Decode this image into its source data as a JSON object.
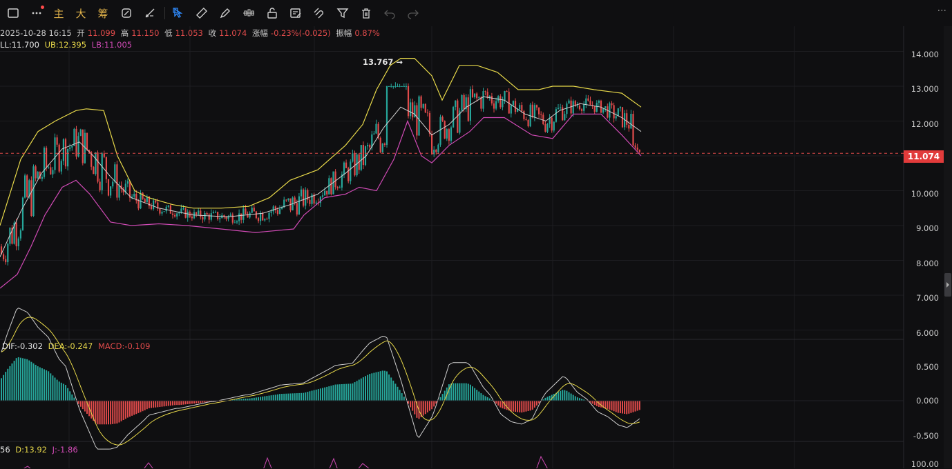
{
  "toolbar": {
    "tools": [
      {
        "name": "layout-icon"
      },
      {
        "name": "more-icon"
      },
      {
        "name": "text-main",
        "label": "主"
      },
      {
        "name": "text-big",
        "label": "大"
      },
      {
        "name": "text-chips",
        "label": "筹"
      },
      {
        "name": "draw-icon"
      },
      {
        "name": "line-tool-icon"
      },
      {
        "name": "select-icon"
      },
      {
        "name": "ruler-icon"
      },
      {
        "name": "pen-icon"
      },
      {
        "name": "candle-icon"
      },
      {
        "name": "lock-icon"
      },
      {
        "name": "note-icon"
      },
      {
        "name": "magnet-icon"
      },
      {
        "name": "filter-icon"
      },
      {
        "name": "trash-icon"
      },
      {
        "name": "undo-icon"
      },
      {
        "name": "redo-icon"
      }
    ],
    "right_more": "···"
  },
  "ohlc": {
    "datetime": "2025-10-28 16:15",
    "open_label": "开",
    "open": "11.099",
    "high_label": "高",
    "high": "11.150",
    "low_label": "低",
    "low": "11.053",
    "close_label": "收",
    "close": "11.074",
    "change_label": "涨幅",
    "change": "-0.23%(-0.025)",
    "amplitude_label": "振幅",
    "amplitude": "0.87%"
  },
  "boll": {
    "mid": "LL:11.700",
    "ub": "UB:12.395",
    "lb": "LB:11.005"
  },
  "macd": {
    "dif": "DIF:-0.302",
    "dea": "DEA:-0.247",
    "macd": "MACD:-0.109"
  },
  "kdj": {
    "k": "56",
    "d": "D:13.92",
    "j": "J:-1.86"
  },
  "high_annotation": "13.767",
  "last_price": "11.074",
  "price_axis": [
    "14.000",
    "13.000",
    "12.000",
    "11.000",
    "10.000",
    "9.000",
    "8.000",
    "7.000",
    "6.000"
  ],
  "macd_axis": [
    "0.500",
    "0.000",
    "-0.500"
  ],
  "kdj_axis": [
    "100.00"
  ],
  "colors": {
    "up": "#26a69a",
    "down": "#e14b4b",
    "ub": "#e8d94a",
    "mid": "#d0d0d0",
    "lb": "#d04ab5",
    "grid": "#1d1d21"
  },
  "chart_data": {
    "type": "candlestick",
    "price_range": [
      6,
      14
    ],
    "last_close": 11.074,
    "period_high": 13.767,
    "boll_mid_path": [
      [
        0,
        8.1
      ],
      [
        30,
        9.4
      ],
      [
        60,
        10.5
      ],
      [
        90,
        11.2
      ],
      [
        115,
        11.4
      ],
      [
        135,
        11.0
      ],
      [
        160,
        10.4
      ],
      [
        190,
        9.8
      ],
      [
        230,
        9.5
      ],
      [
        280,
        9.3
      ],
      [
        330,
        9.25
      ],
      [
        380,
        9.35
      ],
      [
        420,
        9.6
      ],
      [
        460,
        9.9
      ],
      [
        500,
        10.5
      ],
      [
        530,
        11.0
      ],
      [
        555,
        11.8
      ],
      [
        580,
        12.4
      ],
      [
        600,
        12.2
      ],
      [
        625,
        11.6
      ],
      [
        650,
        11.9
      ],
      [
        675,
        12.4
      ],
      [
        700,
        12.7
      ],
      [
        730,
        12.6
      ],
      [
        760,
        12.2
      ],
      [
        790,
        12.0
      ],
      [
        810,
        12.3
      ],
      [
        840,
        12.5
      ],
      [
        870,
        12.4
      ],
      [
        900,
        12.1
      ],
      [
        928,
        11.7
      ]
    ],
    "boll_ub_path": [
      [
        0,
        9.0
      ],
      [
        30,
        10.9
      ],
      [
        55,
        11.7
      ],
      [
        80,
        12.0
      ],
      [
        110,
        12.3
      ],
      [
        125,
        12.35
      ],
      [
        150,
        12.3
      ],
      [
        170,
        11.0
      ],
      [
        195,
        10.0
      ],
      [
        215,
        9.8
      ],
      [
        250,
        9.6
      ],
      [
        280,
        9.5
      ],
      [
        320,
        9.5
      ],
      [
        360,
        9.55
      ],
      [
        390,
        9.8
      ],
      [
        420,
        10.3
      ],
      [
        460,
        10.6
      ],
      [
        500,
        11.3
      ],
      [
        525,
        11.9
      ],
      [
        545,
        12.9
      ],
      [
        565,
        13.6
      ],
      [
        580,
        13.8
      ],
      [
        600,
        13.8
      ],
      [
        625,
        13.3
      ],
      [
        640,
        12.6
      ],
      [
        665,
        13.6
      ],
      [
        690,
        13.6
      ],
      [
        720,
        13.4
      ],
      [
        750,
        12.9
      ],
      [
        780,
        12.9
      ],
      [
        800,
        13.0
      ],
      [
        830,
        13.0
      ],
      [
        860,
        12.9
      ],
      [
        900,
        12.8
      ],
      [
        928,
        12.4
      ]
    ],
    "boll_lb_path": [
      [
        0,
        7.2
      ],
      [
        25,
        7.6
      ],
      [
        45,
        8.4
      ],
      [
        65,
        9.3
      ],
      [
        90,
        10.1
      ],
      [
        110,
        10.3
      ],
      [
        130,
        9.9
      ],
      [
        160,
        9.1
      ],
      [
        190,
        9.0
      ],
      [
        230,
        9.05
      ],
      [
        270,
        9.0
      ],
      [
        320,
        8.9
      ],
      [
        370,
        8.8
      ],
      [
        425,
        8.9
      ],
      [
        440,
        9.3
      ],
      [
        470,
        9.8
      ],
      [
        500,
        9.9
      ],
      [
        520,
        10.1
      ],
      [
        545,
        10.0
      ],
      [
        570,
        10.9
      ],
      [
        590,
        12.0
      ],
      [
        610,
        11.0
      ],
      [
        625,
        10.8
      ],
      [
        650,
        11.3
      ],
      [
        680,
        11.7
      ],
      [
        700,
        12.1
      ],
      [
        730,
        12.1
      ],
      [
        770,
        11.6
      ],
      [
        800,
        11.5
      ],
      [
        830,
        12.2
      ],
      [
        870,
        12.2
      ],
      [
        900,
        11.6
      ],
      [
        928,
        11.0
      ]
    ]
  }
}
